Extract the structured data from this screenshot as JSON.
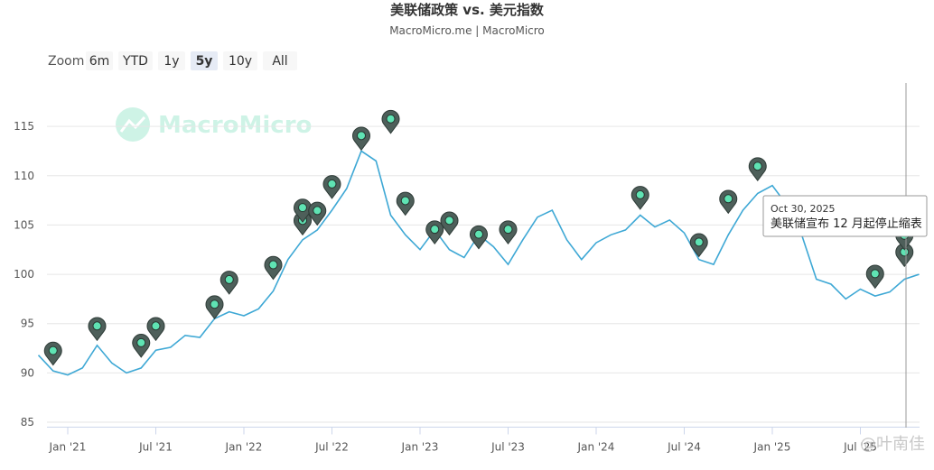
{
  "chart_data": {
    "type": "line",
    "title": "美联储政策 vs. 美元指数",
    "subtitle": "MacroMicro.me | MacroMicro",
    "watermark": "MacroMicro",
    "credit": "@叶南佳",
    "zoom": {
      "label": "Zoom",
      "buttons": [
        "6m",
        "YTD",
        "1y",
        "5y",
        "10y",
        "All"
      ],
      "selected": "5y"
    },
    "color": "#3ea8d5",
    "x": [
      "2020-11",
      "2020-12",
      "2021-01",
      "2021-02",
      "2021-03",
      "2021-04",
      "2021-05",
      "2021-06",
      "2021-07",
      "2021-08",
      "2021-09",
      "2021-10",
      "2021-11",
      "2021-12",
      "2022-01",
      "2022-02",
      "2022-03",
      "2022-04",
      "2022-05",
      "2022-06",
      "2022-07",
      "2022-08",
      "2022-09",
      "2022-10",
      "2022-11",
      "2022-12",
      "2023-01",
      "2023-02",
      "2023-03",
      "2023-04",
      "2023-05",
      "2023-06",
      "2023-07",
      "2023-08",
      "2023-09",
      "2023-10",
      "2023-11",
      "2023-12",
      "2024-01",
      "2024-02",
      "2024-03",
      "2024-04",
      "2024-05",
      "2024-06",
      "2024-07",
      "2024-08",
      "2024-09",
      "2024-10",
      "2024-11",
      "2024-12",
      "2025-01",
      "2025-02",
      "2025-03",
      "2025-04",
      "2025-05",
      "2025-06",
      "2025-07",
      "2025-08",
      "2025-09",
      "2025-10",
      "2025-11"
    ],
    "values": [
      91.8,
      90.2,
      89.8,
      90.5,
      92.8,
      91.0,
      90.0,
      90.5,
      92.3,
      92.6,
      93.8,
      93.6,
      95.5,
      96.2,
      95.8,
      96.5,
      98.3,
      101.5,
      103.5,
      104.5,
      106.5,
      108.7,
      112.5,
      111.5,
      106.0,
      104.0,
      102.5,
      104.5,
      102.5,
      101.7,
      104.0,
      102.8,
      101.0,
      103.5,
      105.8,
      106.5,
      103.5,
      101.5,
      103.2,
      104.0,
      104.5,
      106.0,
      104.8,
      105.5,
      104.2,
      101.5,
      101.0,
      104.0,
      106.5,
      108.2,
      109.0,
      107.0,
      104.0,
      99.5,
      99.0,
      97.5,
      98.5,
      97.8,
      98.2,
      99.5,
      100.0
    ],
    "events": {
      "x": [
        "2020-12",
        "2021-03",
        "2021-06",
        "2021-07",
        "2021-11",
        "2021-12",
        "2022-03",
        "2022-05",
        "2022-05",
        "2022-06",
        "2022-07",
        "2022-09",
        "2022-11",
        "2022-12",
        "2023-02",
        "2023-03",
        "2023-05",
        "2023-07",
        "2024-04",
        "2024-08",
        "2024-10",
        "2024-12",
        "2025-08",
        "2025-10",
        "2025-10"
      ],
      "values": [
        90.8,
        93.3,
        91.6,
        93.3,
        95.5,
        98.0,
        99.5,
        104.0,
        105.3,
        105.0,
        107.7,
        112.6,
        114.3,
        106.0,
        103.1,
        104.0,
        102.6,
        103.1,
        106.6,
        101.8,
        106.2,
        109.5,
        98.6,
        100.8,
        102.5
      ]
    },
    "tooltip": {
      "date": "Oct 30, 2025",
      "text": "美联储宣布 12 月起停止缩表"
    },
    "xlim": [
      "2020-11",
      "2025-11"
    ],
    "xticks": [
      {
        "value": "2021-01",
        "label": "Jan '21"
      },
      {
        "value": "2021-07",
        "label": "Jul '21"
      },
      {
        "value": "2022-01",
        "label": "Jan '22"
      },
      {
        "value": "2022-07",
        "label": "Jul '22"
      },
      {
        "value": "2023-01",
        "label": "Jan '23"
      },
      {
        "value": "2023-07",
        "label": "Jul '23"
      },
      {
        "value": "2024-01",
        "label": "Jan '24"
      },
      {
        "value": "2024-07",
        "label": "Jul '24"
      },
      {
        "value": "2025-01",
        "label": "Jan '25"
      },
      {
        "value": "2025-07",
        "label": "Jul '25"
      }
    ],
    "ylim": [
      84.5,
      119.4
    ],
    "yticks": [
      85,
      90,
      95,
      100,
      105,
      110,
      115
    ],
    "grid": true
  }
}
